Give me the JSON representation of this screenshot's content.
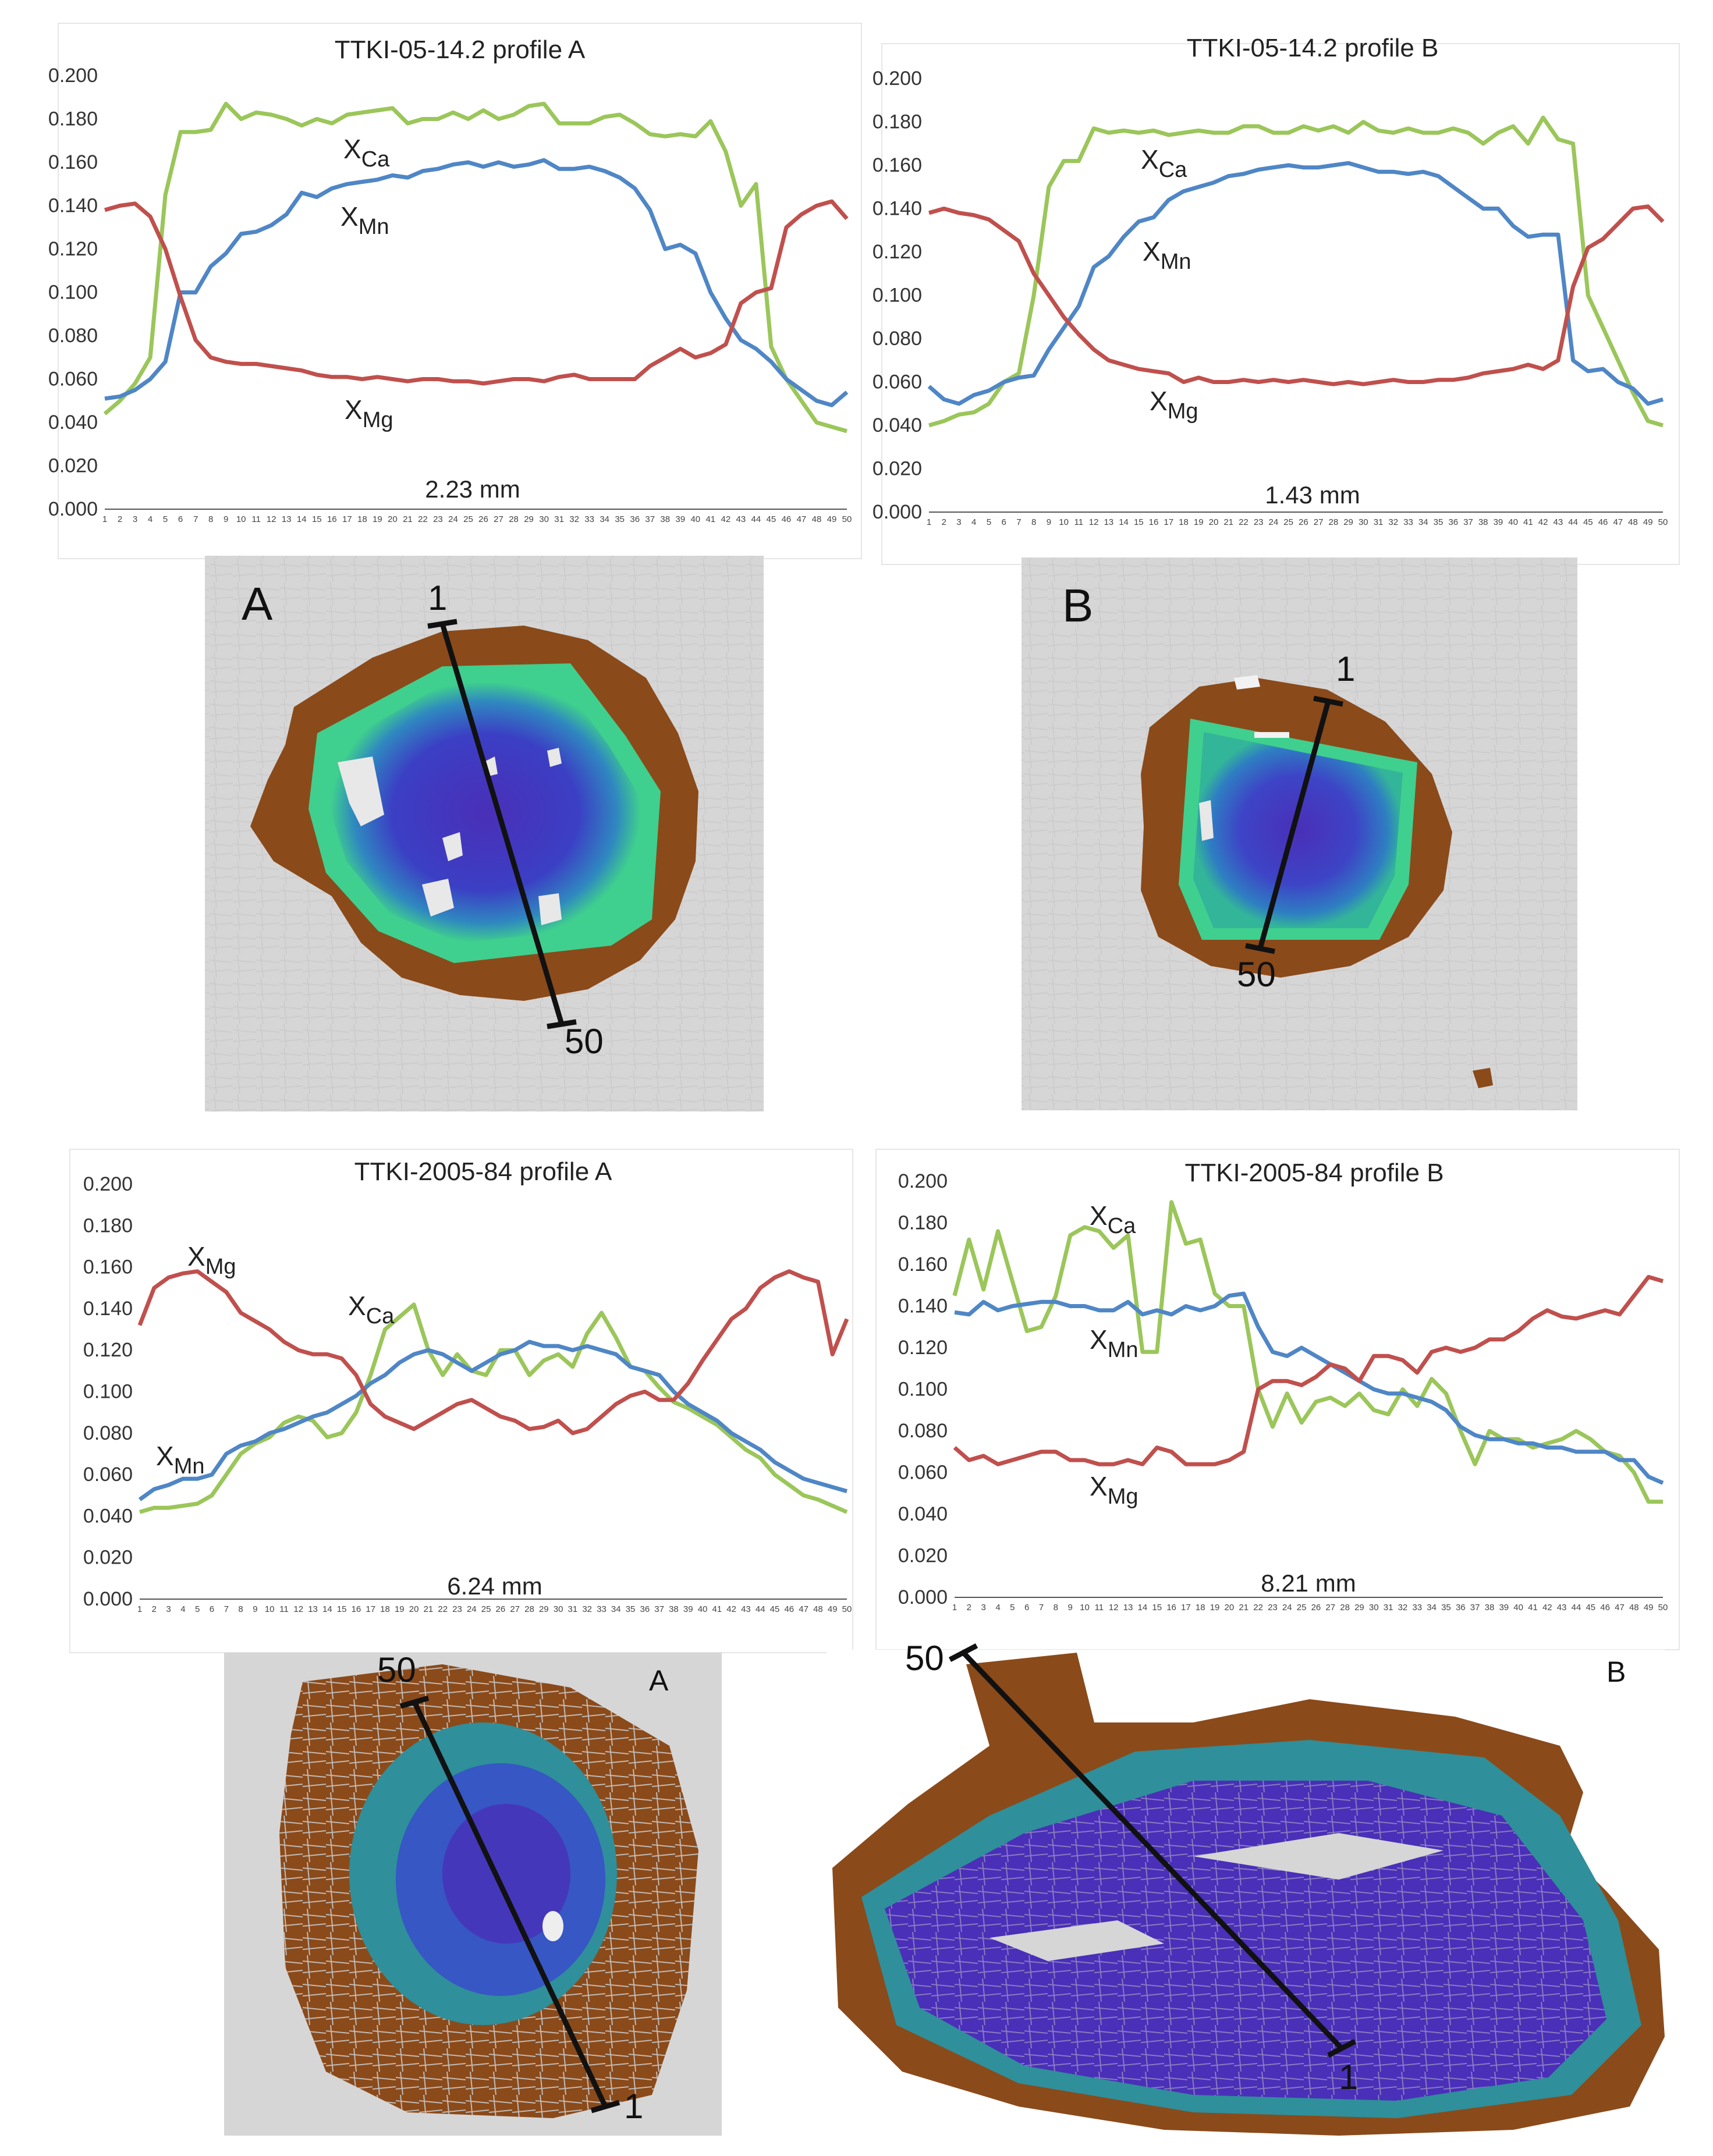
{
  "figure": {
    "section1": {
      "profile_a": {
        "panel_label": "A",
        "start_label": "1",
        "end_label": "50"
      },
      "profile_b": {
        "panel_label": "B",
        "start_label": "1",
        "end_label": "50"
      }
    },
    "section2": {
      "profile_a": {
        "panel_label": "A",
        "start_label": "50",
        "end_label": "1"
      },
      "profile_b": {
        "panel_label": "B",
        "start_label": "50",
        "end_label": "1"
      }
    }
  },
  "colors": {
    "xca": "#9bc65a",
    "xmn": "#4f86c6",
    "xmg": "#c0504d",
    "rim": "#8b4a1a",
    "mantle": "#3fcf8e",
    "core": "#4a2fb8",
    "background_gray": "#d6d6d6"
  },
  "chart_data": [
    {
      "type": "line",
      "title": "TTKI-05-14.2 profile A",
      "distance_label": "2.23 mm",
      "ylim": [
        0,
        0.2
      ],
      "yticks": [
        "0.000",
        "0.020",
        "0.040",
        "0.060",
        "0.080",
        "0.100",
        "0.120",
        "0.140",
        "0.160",
        "0.180",
        "0.200"
      ],
      "x": [
        1,
        2,
        3,
        4,
        5,
        6,
        7,
        8,
        9,
        10,
        11,
        12,
        13,
        14,
        15,
        16,
        17,
        18,
        19,
        20,
        21,
        22,
        23,
        24,
        25,
        26,
        27,
        28,
        29,
        30,
        31,
        32,
        33,
        34,
        35,
        36,
        37,
        38,
        39,
        40,
        41,
        42,
        43,
        44,
        45,
        46,
        47,
        48,
        49,
        50
      ],
      "series": [
        {
          "name": "Ca",
          "label": "X",
          "sub": "Ca",
          "color_key": "xca",
          "values": [
            0.044,
            0.05,
            0.058,
            0.07,
            0.145,
            0.174,
            0.174,
            0.175,
            0.187,
            0.18,
            0.183,
            0.182,
            0.18,
            0.177,
            0.18,
            0.178,
            0.182,
            0.183,
            0.184,
            0.185,
            0.178,
            0.18,
            0.18,
            0.183,
            0.18,
            0.184,
            0.18,
            0.182,
            0.186,
            0.187,
            0.178,
            0.178,
            0.178,
            0.181,
            0.182,
            0.178,
            0.173,
            0.172,
            0.173,
            0.172,
            0.179,
            0.165,
            0.14,
            0.15,
            0.075,
            0.06,
            0.05,
            0.04,
            0.038,
            0.036
          ]
        },
        {
          "name": "Mn",
          "label": "X",
          "sub": "Mn",
          "color_key": "xmn",
          "values": [
            0.051,
            0.052,
            0.055,
            0.06,
            0.068,
            0.1,
            0.1,
            0.112,
            0.118,
            0.127,
            0.128,
            0.131,
            0.136,
            0.146,
            0.144,
            0.148,
            0.15,
            0.151,
            0.152,
            0.154,
            0.153,
            0.156,
            0.157,
            0.159,
            0.16,
            0.158,
            0.16,
            0.158,
            0.159,
            0.161,
            0.157,
            0.157,
            0.158,
            0.156,
            0.153,
            0.148,
            0.138,
            0.12,
            0.122,
            0.118,
            0.1,
            0.088,
            0.078,
            0.074,
            0.068,
            0.06,
            0.055,
            0.05,
            0.048,
            0.054
          ]
        },
        {
          "name": "Mg",
          "label": "X",
          "sub": "Mg",
          "color_key": "xmg",
          "values": [
            0.138,
            0.14,
            0.141,
            0.135,
            0.12,
            0.098,
            0.078,
            0.07,
            0.068,
            0.067,
            0.067,
            0.066,
            0.065,
            0.064,
            0.062,
            0.061,
            0.061,
            0.06,
            0.061,
            0.06,
            0.059,
            0.06,
            0.06,
            0.059,
            0.059,
            0.058,
            0.059,
            0.06,
            0.06,
            0.059,
            0.061,
            0.062,
            0.06,
            0.06,
            0.06,
            0.06,
            0.066,
            0.07,
            0.074,
            0.07,
            0.072,
            0.076,
            0.095,
            0.1,
            0.102,
            0.13,
            0.136,
            0.14,
            0.142,
            0.134
          ]
        }
      ]
    },
    {
      "type": "line",
      "title": "TTKI-05-14.2 profile B",
      "distance_label": "1.43 mm",
      "ylim": [
        0,
        0.2
      ],
      "yticks": [
        "0.000",
        "0.020",
        "0.040",
        "0.060",
        "0.080",
        "0.100",
        "0.120",
        "0.140",
        "0.160",
        "0.180",
        "0.200"
      ],
      "x": [
        1,
        2,
        3,
        4,
        5,
        6,
        7,
        8,
        9,
        10,
        11,
        12,
        13,
        14,
        15,
        16,
        17,
        18,
        19,
        20,
        21,
        22,
        23,
        24,
        25,
        26,
        27,
        28,
        29,
        30,
        31,
        32,
        33,
        34,
        35,
        36,
        37,
        38,
        39,
        40,
        41,
        42,
        43,
        44,
        45,
        46,
        47,
        48,
        49,
        50
      ],
      "series": [
        {
          "name": "Ca",
          "label": "X",
          "sub": "Ca",
          "color_key": "xca",
          "values": [
            0.04,
            0.042,
            0.045,
            0.046,
            0.05,
            0.06,
            0.064,
            0.1,
            0.15,
            0.162,
            0.162,
            0.177,
            0.175,
            0.176,
            0.175,
            0.176,
            0.174,
            0.175,
            0.176,
            0.175,
            0.175,
            0.178,
            0.178,
            0.175,
            0.175,
            0.178,
            0.176,
            0.178,
            0.175,
            0.18,
            0.176,
            0.175,
            0.177,
            0.175,
            0.175,
            0.177,
            0.175,
            0.17,
            0.175,
            0.178,
            0.17,
            0.182,
            0.172,
            0.17,
            0.1,
            0.085,
            0.07,
            0.055,
            0.042,
            0.04
          ]
        },
        {
          "name": "Mn",
          "label": "X",
          "sub": "Mn",
          "color_key": "xmn",
          "values": [
            0.058,
            0.052,
            0.05,
            0.054,
            0.056,
            0.06,
            0.062,
            0.063,
            0.075,
            0.085,
            0.095,
            0.113,
            0.118,
            0.127,
            0.134,
            0.136,
            0.144,
            0.148,
            0.15,
            0.152,
            0.155,
            0.156,
            0.158,
            0.159,
            0.16,
            0.159,
            0.159,
            0.16,
            0.161,
            0.159,
            0.157,
            0.157,
            0.156,
            0.157,
            0.155,
            0.15,
            0.145,
            0.14,
            0.14,
            0.132,
            0.127,
            0.128,
            0.128,
            0.07,
            0.065,
            0.066,
            0.06,
            0.057,
            0.05,
            0.052
          ]
        },
        {
          "name": "Mg",
          "label": "X",
          "sub": "Mg",
          "color_key": "xmg",
          "values": [
            0.138,
            0.14,
            0.138,
            0.137,
            0.135,
            0.13,
            0.125,
            0.11,
            0.1,
            0.09,
            0.082,
            0.075,
            0.07,
            0.068,
            0.066,
            0.065,
            0.064,
            0.06,
            0.062,
            0.06,
            0.06,
            0.061,
            0.06,
            0.061,
            0.06,
            0.061,
            0.06,
            0.059,
            0.06,
            0.059,
            0.06,
            0.061,
            0.06,
            0.06,
            0.061,
            0.061,
            0.062,
            0.064,
            0.065,
            0.066,
            0.068,
            0.066,
            0.07,
            0.104,
            0.122,
            0.126,
            0.133,
            0.14,
            0.141,
            0.134
          ]
        }
      ]
    },
    {
      "type": "line",
      "title": "TTKI-2005-84 profile A",
      "distance_label": "6.24 mm",
      "ylim": [
        0,
        0.2
      ],
      "yticks": [
        "0.000",
        "0.020",
        "0.040",
        "0.060",
        "0.080",
        "0.100",
        "0.120",
        "0.140",
        "0.160",
        "0.180",
        "0.200"
      ],
      "x": [
        1,
        2,
        3,
        4,
        5,
        6,
        7,
        8,
        9,
        10,
        11,
        12,
        13,
        14,
        15,
        16,
        17,
        18,
        19,
        20,
        21,
        22,
        23,
        24,
        25,
        26,
        27,
        28,
        29,
        30,
        31,
        32,
        33,
        34,
        35,
        36,
        37,
        38,
        39,
        40,
        41,
        42,
        43,
        44,
        45,
        46,
        47,
        48,
        49,
        50
      ],
      "series": [
        {
          "name": "Ca",
          "label": "X",
          "sub": "Ca",
          "color_key": "xca",
          "values": [
            0.042,
            0.044,
            0.044,
            0.045,
            0.046,
            0.05,
            0.06,
            0.07,
            0.075,
            0.078,
            0.085,
            0.088,
            0.086,
            0.078,
            0.08,
            0.09,
            0.108,
            0.13,
            0.136,
            0.142,
            0.12,
            0.108,
            0.118,
            0.11,
            0.108,
            0.12,
            0.12,
            0.108,
            0.115,
            0.118,
            0.112,
            0.128,
            0.138,
            0.126,
            0.112,
            0.11,
            0.102,
            0.095,
            0.092,
            0.088,
            0.084,
            0.078,
            0.072,
            0.068,
            0.06,
            0.055,
            0.05,
            0.048,
            0.045,
            0.042
          ]
        },
        {
          "name": "Mn",
          "label": "X",
          "sub": "Mn",
          "color_key": "xmn",
          "values": [
            0.048,
            0.053,
            0.055,
            0.058,
            0.058,
            0.06,
            0.07,
            0.074,
            0.076,
            0.08,
            0.082,
            0.085,
            0.088,
            0.09,
            0.094,
            0.098,
            0.104,
            0.108,
            0.114,
            0.118,
            0.12,
            0.118,
            0.114,
            0.11,
            0.114,
            0.118,
            0.12,
            0.124,
            0.122,
            0.122,
            0.12,
            0.122,
            0.12,
            0.118,
            0.112,
            0.11,
            0.108,
            0.1,
            0.094,
            0.09,
            0.086,
            0.08,
            0.076,
            0.072,
            0.066,
            0.062,
            0.058,
            0.056,
            0.054,
            0.052
          ]
        },
        {
          "name": "Mg",
          "label": "X",
          "sub": "Mg",
          "color_key": "xmg",
          "values": [
            0.132,
            0.15,
            0.155,
            0.157,
            0.158,
            0.153,
            0.148,
            0.138,
            0.134,
            0.13,
            0.124,
            0.12,
            0.118,
            0.118,
            0.116,
            0.108,
            0.094,
            0.088,
            0.085,
            0.082,
            0.086,
            0.09,
            0.094,
            0.096,
            0.092,
            0.088,
            0.086,
            0.082,
            0.083,
            0.086,
            0.08,
            0.082,
            0.088,
            0.094,
            0.098,
            0.1,
            0.096,
            0.096,
            0.104,
            0.115,
            0.125,
            0.135,
            0.14,
            0.15,
            0.155,
            0.158,
            0.155,
            0.153,
            0.118,
            0.135
          ]
        }
      ]
    },
    {
      "type": "line",
      "title": "TTKI-2005-84 profile B",
      "distance_label": "8.21 mm",
      "ylim": [
        0,
        0.2
      ],
      "yticks": [
        "0.000",
        "0.020",
        "0.040",
        "0.060",
        "0.080",
        "0.100",
        "0.120",
        "0.140",
        "0.160",
        "0.180",
        "0.200"
      ],
      "x": [
        1,
        2,
        3,
        4,
        5,
        6,
        7,
        8,
        9,
        10,
        11,
        12,
        13,
        14,
        15,
        16,
        17,
        18,
        19,
        20,
        21,
        22,
        23,
        24,
        25,
        26,
        27,
        28,
        29,
        30,
        31,
        32,
        33,
        34,
        35,
        36,
        37,
        38,
        39,
        40,
        41,
        42,
        43,
        44,
        45,
        46,
        47,
        48,
        49,
        50
      ],
      "series": [
        {
          "name": "Ca",
          "label": "X",
          "sub": "Ca",
          "color_key": "xca",
          "values": [
            0.145,
            0.172,
            0.148,
            0.176,
            0.152,
            0.128,
            0.13,
            0.145,
            0.174,
            0.178,
            0.176,
            0.168,
            0.174,
            0.118,
            0.118,
            0.19,
            0.17,
            0.172,
            0.146,
            0.14,
            0.14,
            0.1,
            0.082,
            0.098,
            0.084,
            0.094,
            0.096,
            0.092,
            0.098,
            0.09,
            0.088,
            0.1,
            0.092,
            0.105,
            0.098,
            0.08,
            0.064,
            0.08,
            0.076,
            0.076,
            0.072,
            0.074,
            0.076,
            0.08,
            0.076,
            0.07,
            0.068,
            0.06,
            0.046,
            0.046
          ]
        },
        {
          "name": "Mn",
          "label": "X",
          "sub": "Mn",
          "color_key": "xmn",
          "values": [
            0.137,
            0.136,
            0.142,
            0.138,
            0.14,
            0.141,
            0.142,
            0.142,
            0.14,
            0.14,
            0.138,
            0.138,
            0.142,
            0.136,
            0.138,
            0.136,
            0.14,
            0.138,
            0.14,
            0.145,
            0.146,
            0.13,
            0.118,
            0.116,
            0.12,
            0.116,
            0.112,
            0.108,
            0.104,
            0.1,
            0.098,
            0.098,
            0.096,
            0.094,
            0.09,
            0.082,
            0.078,
            0.076,
            0.076,
            0.074,
            0.074,
            0.072,
            0.072,
            0.07,
            0.07,
            0.07,
            0.066,
            0.066,
            0.058,
            0.055
          ]
        },
        {
          "name": "Mg",
          "label": "X",
          "sub": "Mg",
          "color_key": "xmg",
          "values": [
            0.072,
            0.066,
            0.068,
            0.064,
            0.066,
            0.068,
            0.07,
            0.07,
            0.066,
            0.066,
            0.064,
            0.064,
            0.066,
            0.064,
            0.072,
            0.07,
            0.064,
            0.064,
            0.064,
            0.066,
            0.07,
            0.1,
            0.104,
            0.104,
            0.102,
            0.106,
            0.112,
            0.11,
            0.104,
            0.116,
            0.116,
            0.114,
            0.108,
            0.118,
            0.12,
            0.118,
            0.12,
            0.124,
            0.124,
            0.128,
            0.134,
            0.138,
            0.135,
            0.134,
            0.136,
            0.138,
            0.136,
            0.145,
            0.154,
            0.152
          ]
        }
      ]
    }
  ]
}
